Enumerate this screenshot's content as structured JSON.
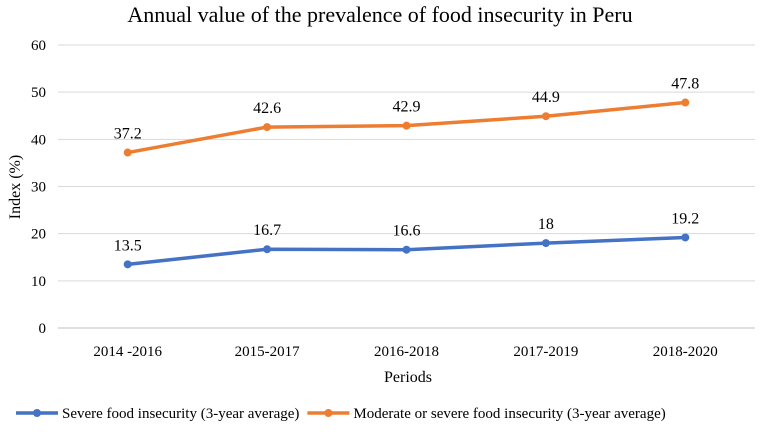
{
  "chart_data": {
    "type": "line",
    "title": "Annual value of the prevalence of food insecurity in Peru",
    "xlabel": "Periods",
    "ylabel": "Index (%)",
    "categories": [
      "2014 -2016",
      "2015-2017",
      "2016-2018",
      "2017-2019",
      "2018-2020"
    ],
    "ylim": [
      0,
      60
    ],
    "yticks": [
      0,
      10,
      20,
      30,
      40,
      50,
      60
    ],
    "grid": true,
    "legend_position": "bottom",
    "series": [
      {
        "name": "Severe food insecurity (3-year average)",
        "color": "#4472c4",
        "values": [
          13.5,
          16.7,
          16.6,
          18,
          19.2
        ],
        "labels": [
          "13.5",
          "16.7",
          "16.6",
          "18",
          "19.2"
        ]
      },
      {
        "name": "Moderate or severe food insecurity (3-year average)",
        "color": "#ed7d31",
        "values": [
          37.2,
          42.6,
          42.9,
          44.9,
          47.8
        ],
        "labels": [
          "37.2",
          "42.6",
          "42.9",
          "44.9",
          "47.8"
        ]
      }
    ]
  }
}
